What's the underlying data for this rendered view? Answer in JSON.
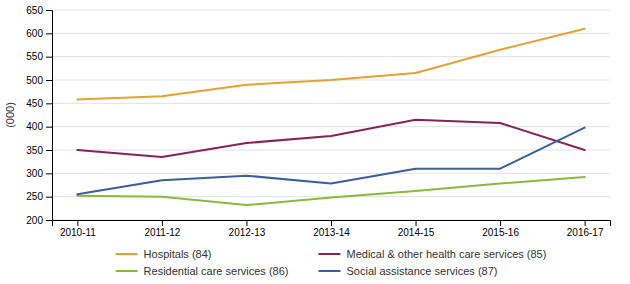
{
  "chart_data": {
    "type": "line",
    "categories": [
      "2010-11",
      "2011-12",
      "2012-13",
      "2013-14",
      "2014-15",
      "2015-16",
      "2016-17"
    ],
    "series": [
      {
        "name": "Hospitals (84)",
        "color": "#E8A030",
        "values": [
          458,
          465,
          490,
          500,
          515,
          565,
          610
        ]
      },
      {
        "name": "Medical & other health care services (85)",
        "color": "#8B2252",
        "values": [
          350,
          335,
          365,
          380,
          415,
          408,
          350
        ]
      },
      {
        "name": "Residential care services (86)",
        "color": "#8DB83A",
        "values": [
          252,
          250,
          232,
          248,
          262,
          278,
          292
        ]
      },
      {
        "name": "Social assistance services (87)",
        "color": "#3A5FA0",
        "values": [
          255,
          285,
          295,
          278,
          310,
          310,
          398
        ]
      }
    ],
    "ylabel": "(000)",
    "ylim": [
      200,
      650
    ],
    "yticks": [
      200,
      250,
      300,
      350,
      400,
      450,
      500,
      550,
      600,
      650
    ],
    "grid": true,
    "legend": "bottom"
  }
}
